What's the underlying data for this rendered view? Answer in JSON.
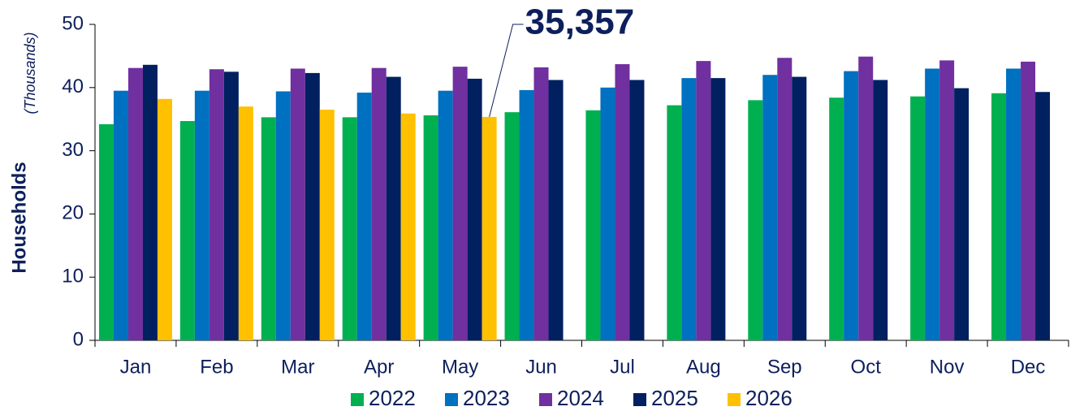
{
  "chart_data": {
    "type": "bar",
    "y_label": "Households",
    "y_sublabel": "(Thousands)",
    "categories": [
      "Jan",
      "Feb",
      "Mar",
      "Apr",
      "May",
      "Jun",
      "Jul",
      "Aug",
      "Sep",
      "Oct",
      "Nov",
      "Dec"
    ],
    "series": [
      {
        "name": "2022",
        "color": "#00b050",
        "values": [
          34.2,
          34.7,
          35.3,
          35.3,
          35.6,
          36.1,
          36.4,
          37.2,
          38.0,
          38.4,
          38.6,
          39.1
        ]
      },
      {
        "name": "2023",
        "color": "#0070c0",
        "values": [
          39.5,
          39.5,
          39.4,
          39.2,
          39.5,
          39.6,
          40.0,
          41.5,
          42.0,
          42.6,
          43.0,
          43.0
        ]
      },
      {
        "name": "2024",
        "color": "#7030a0",
        "values": [
          43.1,
          42.9,
          43.0,
          43.1,
          43.3,
          43.2,
          43.7,
          44.2,
          44.7,
          44.9,
          44.3,
          44.1
        ]
      },
      {
        "name": "2025",
        "color": "#002060",
        "values": [
          43.6,
          42.5,
          42.3,
          41.7,
          41.4,
          41.2,
          41.2,
          41.5,
          41.7,
          41.2,
          39.9,
          39.3
        ]
      },
      {
        "name": "2026",
        "color": "#ffc000",
        "values": [
          38.2,
          37.0,
          36.5,
          35.9,
          35.357,
          null,
          null,
          null,
          null,
          null,
          null,
          null
        ],
        "value_labels": [
          null,
          null,
          null,
          null,
          "35,357",
          null,
          null,
          null,
          null,
          null,
          null,
          null
        ]
      }
    ],
    "ylim": [
      0,
      50
    ],
    "yticks": [
      0,
      10,
      20,
      30,
      40,
      50
    ],
    "legend": "bottom"
  }
}
